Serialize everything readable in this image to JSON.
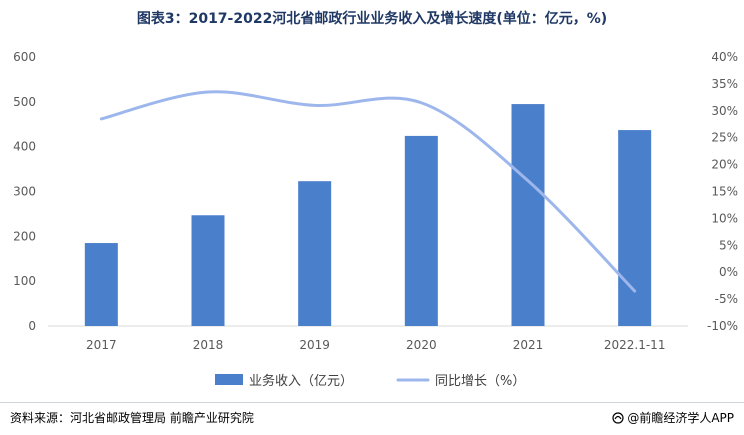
{
  "title": "图表3：2017-2022河北省邮政行业业务收入及增长速度(单位：亿元，%)",
  "source_text": "资料来源：河北省邮政管理局 前瞻产业研究院",
  "brand_text": "@前瞻经济学人APP",
  "colors": {
    "bar": "#4a7fcb",
    "line": "#9db7ec"
  },
  "chart_data": {
    "type": "bar+line",
    "title": "图表3：2017-2022河北省邮政行业业务收入及增长速度(单位：亿元，%)",
    "categories": [
      "2017",
      "2018",
      "2019",
      "2020",
      "2021",
      "2022.1-11"
    ],
    "series": [
      {
        "name": "业务收入（亿元）",
        "type": "bar",
        "axis": "left",
        "values": [
          185,
          247,
          323,
          424,
          495,
          437
        ]
      },
      {
        "name": "同比增长（%）",
        "type": "line",
        "axis": "right",
        "smooth": true,
        "values": [
          28.5,
          33.5,
          31.0,
          31.5,
          17.0,
          -3.5
        ]
      }
    ],
    "y_left": {
      "min": 0,
      "max": 600,
      "step": 100,
      "tick_labels": [
        "0",
        "100",
        "200",
        "300",
        "400",
        "500",
        "600"
      ]
    },
    "y_right": {
      "min": -10,
      "max": 40,
      "step": 5,
      "tick_labels": [
        "-10%",
        "-5%",
        "0%",
        "5%",
        "10%",
        "15%",
        "20%",
        "25%",
        "30%",
        "35%",
        "40%"
      ]
    },
    "grid": false,
    "legend": "bottom"
  }
}
